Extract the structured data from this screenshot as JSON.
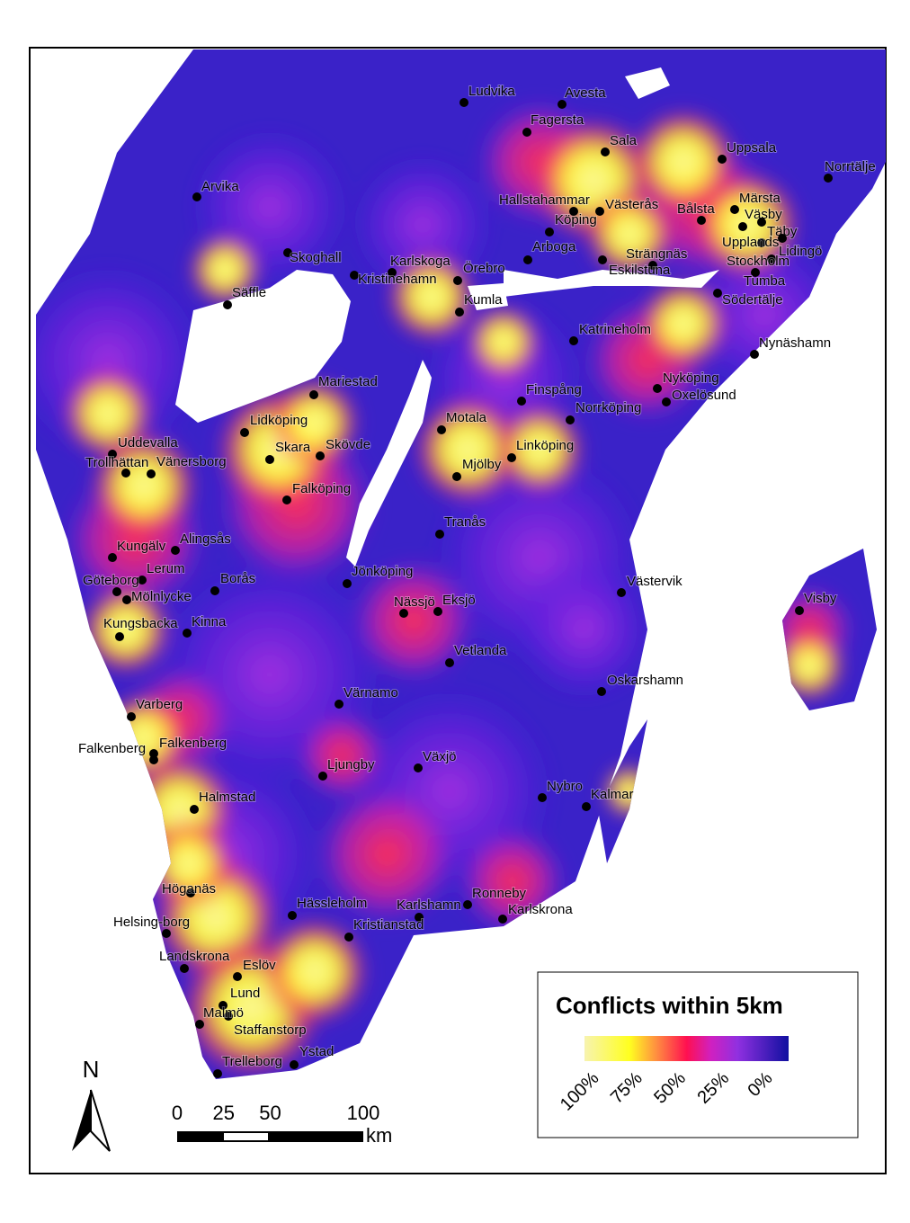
{
  "north_arrow": "N",
  "scale_bar": {
    "ticks": [
      0,
      25,
      50,
      100
    ],
    "unit": "km"
  },
  "legend": {
    "title": "Conflicts within 5km",
    "labels": [
      "100%",
      "75%",
      "50%",
      "25%",
      "0%"
    ]
  },
  "cities": [
    "Ludvika",
    "Avesta",
    "Fagersta",
    "Sala",
    "Uppsala",
    "Norrtälje",
    "Arvika",
    "Hallstahammar",
    "Västerås",
    "Bålsta",
    "Märsta",
    "Väsby",
    "Täby",
    "Köping",
    "Upplands",
    "Lidingö",
    "Stockholm",
    "Arboga",
    "Strängnäs",
    "Eskilstuna",
    "Skoghall",
    "Karlskoga",
    "Kristinehamn",
    "Örebro",
    "Tumba",
    "Säffle",
    "Södertälje",
    "Kumla",
    "Katrineholm",
    "Nynäshamn",
    "Nyköping",
    "Oxelösund",
    "Mariestad",
    "Finspång",
    "Norrköping",
    "Lidköping",
    "Motala",
    "Uddevalla",
    "Skara",
    "Skövde",
    "Linköping",
    "Trollhättan",
    "Vänersborg",
    "Mjölby",
    "Falköping",
    "Tranås",
    "Kungälv",
    "Alingsås",
    "Lerum",
    "Göteborg",
    "Borås",
    "Jönköping",
    "Mölnlycke",
    "Västervik",
    "Visby",
    "Nässjö",
    "Eksjö",
    "Kinna",
    "Kungsbacka",
    "Vetlanda",
    "Oskarshamn",
    "Värnamo",
    "Varberg",
    "Falkenberg",
    "Falkenberg",
    "Växjö",
    "Ljungby",
    "Nybro",
    "Kalmar",
    "Halmstad",
    "Höganäs",
    "Ronneby",
    "Karlshamn",
    "Karlskrona",
    "Hässleholm",
    "Helsing-borg",
    "Kristianstad",
    "Landskrona",
    "Eslöv",
    "Lund",
    "Malmö",
    "Staffanstorp",
    "Ystad",
    "Trelleborg"
  ]
}
